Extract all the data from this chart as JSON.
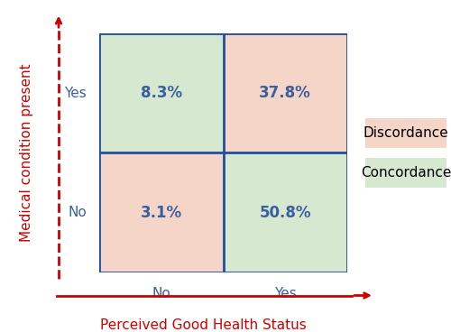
{
  "quadrants": [
    {
      "label": "8.3%",
      "color": "#d6e8d0",
      "row": 1,
      "col": 0
    },
    {
      "label": "37.8%",
      "color": "#f5d5c8",
      "row": 1,
      "col": 1
    },
    {
      "label": "3.1%",
      "color": "#f5d5c8",
      "row": 0,
      "col": 0
    },
    {
      "label": "50.8%",
      "color": "#d6e8d0",
      "row": 0,
      "col": 1
    }
  ],
  "x_axis_label": "Perceived Good Health Status",
  "y_axis_label": "Medical condition present",
  "x_tick_labels": [
    "No",
    "Yes"
  ],
  "y_tick_labels": [
    "No",
    "Yes"
  ],
  "legend_items": [
    {
      "label": "Discordance",
      "color": "#f5d5c8"
    },
    {
      "label": "Concordance",
      "color": "#d6e8d0"
    }
  ],
  "divider_color": "#1f4fa0",
  "axis_color_red": "#cc0000",
  "label_color": "#3a5fa0",
  "label_fontsize": 12,
  "tick_fontsize": 11,
  "axis_label_fontsize": 11,
  "legend_fontsize": 11
}
